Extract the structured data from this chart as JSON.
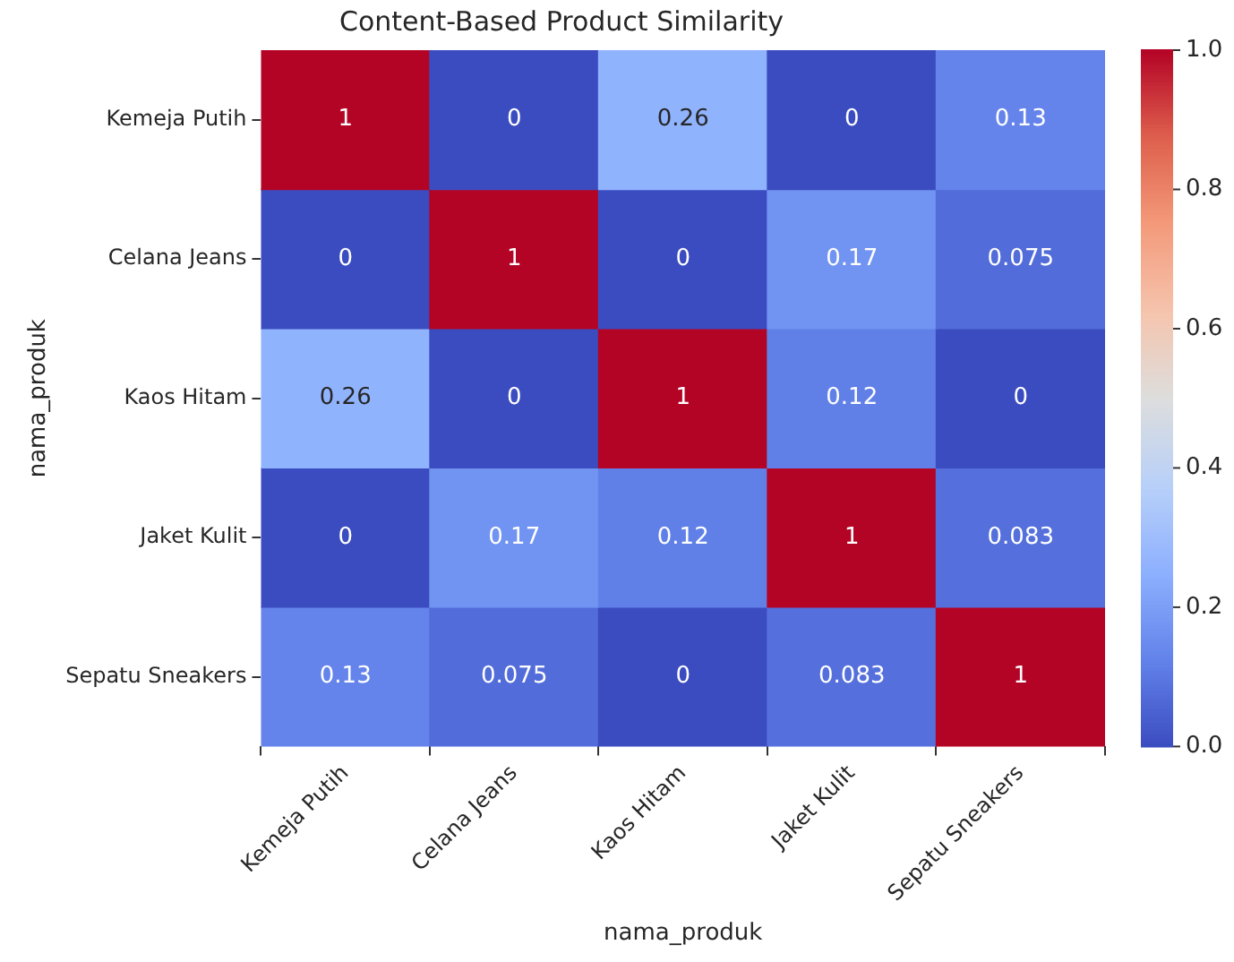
{
  "chart_data": {
    "type": "heatmap",
    "title": "Content-Based Product Similarity",
    "xlabel": "nama_produk",
    "ylabel": "nama_produk",
    "categories": [
      "Kemeja Putih",
      "Celana Jeans",
      "Kaos Hitam",
      "Jaket Kulit",
      "Sepatu Sneakers"
    ],
    "y_categories": [
      "Kemeja Putih",
      "Celana Jeans",
      "Kaos Hitam",
      "Jaket Kulit",
      "Sepatu Sneakers"
    ],
    "cells": [
      [
        1,
        0,
        0.26,
        0,
        0.13
      ],
      [
        0,
        1,
        0,
        0.17,
        0.075
      ],
      [
        0.26,
        0,
        1,
        0.12,
        0
      ],
      [
        0,
        0.17,
        0.12,
        1,
        0.083
      ],
      [
        0.13,
        0.075,
        0,
        0.083,
        1
      ]
    ],
    "clim": [
      0,
      1
    ],
    "cticks": [
      {
        "value": 0,
        "label": "0.0"
      },
      {
        "value": 0.2,
        "label": "0.2"
      },
      {
        "value": 0.4,
        "label": "0.4"
      },
      {
        "value": 0.6,
        "label": "0.6"
      },
      {
        "value": 0.8,
        "label": "0.8"
      },
      {
        "value": 1,
        "label": "1.0"
      }
    ],
    "data_labels": true
  }
}
